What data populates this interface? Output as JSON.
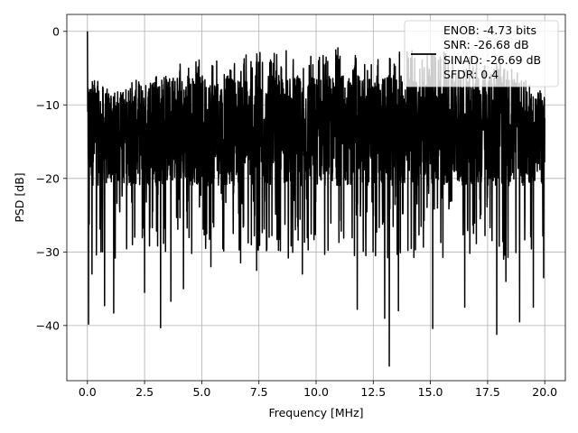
{
  "chart_data": {
    "type": "line",
    "title": "",
    "xlabel": "Frequency [MHz]",
    "ylabel": "PSD [dB]",
    "xlim": [
      -0.9,
      20.9
    ],
    "ylim": [
      -47.5,
      2.3
    ],
    "xticks": [
      0.0,
      2.5,
      5.0,
      7.5,
      10.0,
      12.5,
      15.0,
      17.5,
      20.0
    ],
    "xtick_labels": [
      "0.0",
      "2.5",
      "5.0",
      "7.5",
      "10.0",
      "12.5",
      "15.0",
      "17.5",
      "20.0"
    ],
    "yticks": [
      0,
      -10,
      -20,
      -30,
      -40
    ],
    "ytick_labels": [
      "0",
      "−10",
      "−20",
      "−30",
      "−40"
    ],
    "grid": true,
    "legend": {
      "location": "upper right",
      "lines": [
        "ENOB: -4.73 bits",
        "SNR: -26.68 dB",
        "SINAD: -26.69 dB",
        "SFDR: 0.4"
      ]
    },
    "series": [
      {
        "color": "#000000",
        "x_range": [
          0.0,
          20.0
        ],
        "typical_band": [
          -21,
          -6
        ],
        "envelope_max": [
          [
            0.0,
            0.0
          ],
          [
            0.1,
            -5
          ],
          [
            0.5,
            -7
          ],
          [
            1.0,
            -8
          ],
          [
            1.5,
            -8
          ],
          [
            2.0,
            -6.5
          ],
          [
            2.5,
            -7
          ],
          [
            3.0,
            -6
          ],
          [
            3.5,
            -6
          ],
          [
            4.0,
            -4
          ],
          [
            4.5,
            -5
          ],
          [
            5.0,
            -3
          ],
          [
            5.5,
            -4
          ],
          [
            6.0,
            -4
          ],
          [
            6.5,
            -3
          ],
          [
            7.0,
            -3
          ],
          [
            7.5,
            -2.5
          ],
          [
            8.0,
            -3
          ],
          [
            8.5,
            -3
          ],
          [
            9.0,
            -2
          ],
          [
            9.5,
            -3
          ],
          [
            10.0,
            -2
          ],
          [
            10.5,
            -3
          ],
          [
            11.0,
            -2
          ],
          [
            11.5,
            -3
          ],
          [
            12.0,
            -3
          ],
          [
            12.5,
            -3
          ],
          [
            13.0,
            -3
          ],
          [
            13.5,
            -3
          ],
          [
            14.0,
            -2
          ],
          [
            14.5,
            -3
          ],
          [
            15.0,
            -3
          ],
          [
            15.5,
            -2
          ],
          [
            16.0,
            -4
          ],
          [
            16.5,
            -4
          ],
          [
            17.0,
            -3
          ],
          [
            17.5,
            -5
          ],
          [
            18.0,
            -4
          ],
          [
            18.5,
            -5
          ],
          [
            19.0,
            -6
          ],
          [
            19.5,
            -8
          ],
          [
            20.0,
            -8
          ]
        ],
        "deep_dips": [
          [
            0.05,
            -39.8
          ],
          [
            0.2,
            -33
          ],
          [
            0.75,
            -37.3
          ],
          [
            1.15,
            -38.3
          ],
          [
            2.5,
            -35.5
          ],
          [
            3.2,
            -40.3
          ],
          [
            3.65,
            -36.7
          ],
          [
            4.2,
            -35
          ],
          [
            5.4,
            -32
          ],
          [
            6.7,
            -31.5
          ],
          [
            7.4,
            -32.5
          ],
          [
            9.4,
            -33
          ],
          [
            11.8,
            -37.8
          ],
          [
            13.0,
            -39
          ],
          [
            13.2,
            -45.5
          ],
          [
            13.6,
            -38
          ],
          [
            15.1,
            -40.4
          ],
          [
            16.5,
            -37.5
          ],
          [
            17.9,
            -41.2
          ],
          [
            18.3,
            -34
          ],
          [
            18.9,
            -39.5
          ],
          [
            19.5,
            -37.5
          ],
          [
            19.95,
            -33.5
          ]
        ]
      }
    ]
  }
}
